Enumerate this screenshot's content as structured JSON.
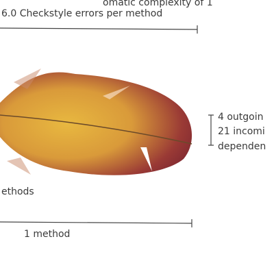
{
  "labels": {
    "complexity": "omatic complexity of 1",
    "checkstyle": "6.0 Checkstyle errors per method",
    "dependencies": [
      "4 outgoin",
      "21 incomi",
      "dependen"
    ],
    "methods": "ethods",
    "method_scale": "1 method"
  }
}
